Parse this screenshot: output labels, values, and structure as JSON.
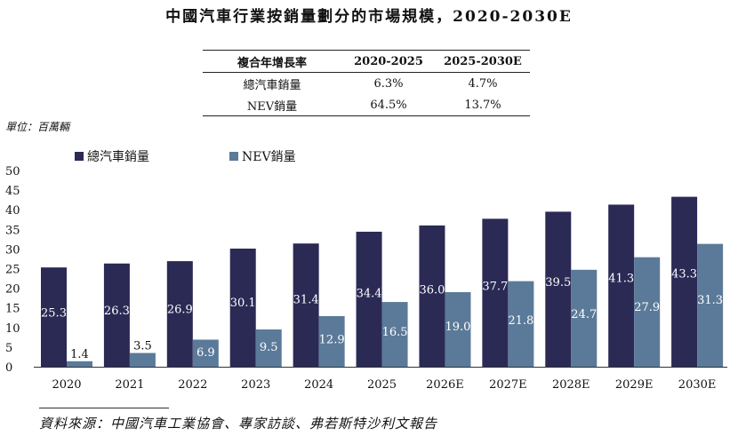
{
  "title": "中國汽車行業按銷量劃分的市場規模，2020-2030E",
  "cagr_table": {
    "headers": [
      "複合年增長率",
      "2020-2025",
      "2025-2030E"
    ],
    "rows": [
      {
        "label": "總汽車銷量",
        "v1": "6.3%",
        "v2": "4.7%"
      },
      {
        "label": "NEV銷量",
        "v1": "64.5%",
        "v2": "13.7%"
      }
    ]
  },
  "unit_label": "單位：百萬輛",
  "source": "資料來源：中國汽車工業協會、專家訪談、弗若斯特沙利文報告",
  "colors": {
    "total": "#2b2a55",
    "nev": "#5b7a99"
  },
  "chart_data": {
    "type": "bar",
    "categories": [
      "2020",
      "2021",
      "2022",
      "2023",
      "2024",
      "2025",
      "2026E",
      "2027E",
      "2028E",
      "2029E",
      "2030E"
    ],
    "series": [
      {
        "name": "總汽車銷量",
        "values": [
          25.3,
          26.3,
          26.9,
          30.1,
          31.4,
          34.4,
          36.0,
          37.7,
          39.5,
          41.3,
          43.3
        ]
      },
      {
        "name": "NEV銷量",
        "values": [
          1.4,
          3.5,
          6.9,
          9.5,
          12.9,
          16.5,
          19.0,
          21.8,
          24.7,
          27.9,
          31.3
        ]
      }
    ],
    "ylim": [
      0,
      50
    ],
    "yticks": [
      0,
      5,
      10,
      15,
      20,
      25,
      30,
      35,
      40,
      45,
      50
    ],
    "legend_position": "top-left"
  }
}
